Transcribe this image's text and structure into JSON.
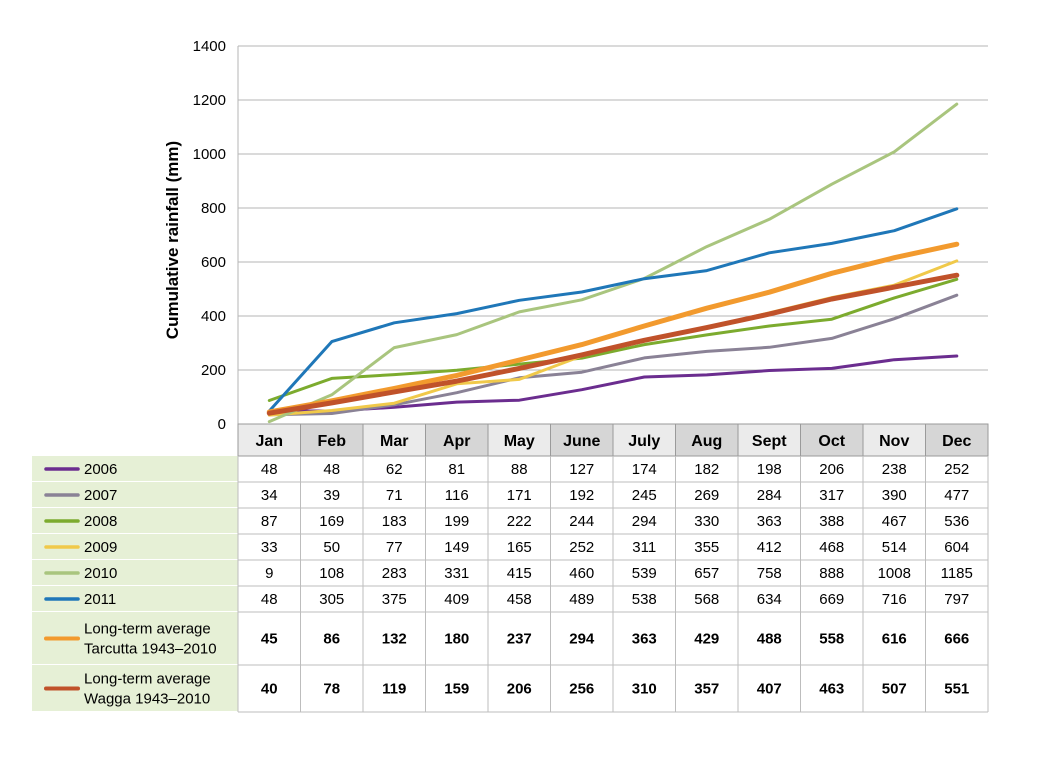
{
  "chart_data": {
    "type": "line",
    "title": "",
    "xlabel": "",
    "ylabel": "Cumulative rainfall (mm)",
    "ylim": [
      0,
      1400
    ],
    "yticks": [
      0,
      200,
      400,
      600,
      800,
      1000,
      1200,
      1400
    ],
    "grid": true,
    "legend_placement": "table-left",
    "categories": [
      "Jan",
      "Feb",
      "Mar",
      "Apr",
      "May",
      "June",
      "July",
      "Aug",
      "Sept",
      "Oct",
      "Nov",
      "Dec"
    ],
    "series": [
      {
        "name": "2006",
        "color": "#6b2d8f",
        "bold": false,
        "values": [
          48,
          48,
          62,
          81,
          88,
          127,
          174,
          182,
          198,
          206,
          238,
          252
        ]
      },
      {
        "name": "2007",
        "color": "#8a8296",
        "bold": false,
        "values": [
          34,
          39,
          71,
          116,
          171,
          192,
          245,
          269,
          284,
          317,
          390,
          477
        ]
      },
      {
        "name": "2008",
        "color": "#7cab2e",
        "bold": false,
        "values": [
          87,
          169,
          183,
          199,
          222,
          244,
          294,
          330,
          363,
          388,
          467,
          536
        ]
      },
      {
        "name": "2009",
        "color": "#f0c94a",
        "bold": false,
        "values": [
          33,
          50,
          77,
          149,
          165,
          252,
          311,
          355,
          412,
          468,
          514,
          604
        ]
      },
      {
        "name": "2010",
        "color": "#a9c57e",
        "bold": false,
        "values": [
          9,
          108,
          283,
          331,
          415,
          460,
          539,
          657,
          758,
          888,
          1008,
          1185
        ]
      },
      {
        "name": "2011",
        "color": "#1f77b8",
        "bold": false,
        "values": [
          48,
          305,
          375,
          409,
          458,
          489,
          538,
          568,
          634,
          669,
          716,
          797
        ]
      },
      {
        "name": "Long-term average Tarcutta 1943–2010",
        "name_lines": [
          "Long-term average",
          "Tarcutta 1943–2010"
        ],
        "color": "#f29a2e",
        "bold": true,
        "values": [
          45,
          86,
          132,
          180,
          237,
          294,
          363,
          429,
          488,
          558,
          616,
          666
        ]
      },
      {
        "name": "Long-term average Wagga 1943–2010",
        "name_lines": [
          "Long-term average",
          "Wagga 1943–2010"
        ],
        "color": "#c0522a",
        "bold": true,
        "values": [
          40,
          78,
          119,
          159,
          206,
          256,
          310,
          357,
          407,
          463,
          507,
          551
        ]
      }
    ]
  },
  "colors": {
    "header_light": "#ebebeb",
    "header_dark": "#d6d6d6",
    "legend_bg": "#e6f0d6",
    "grid": "#b5b5b5"
  }
}
